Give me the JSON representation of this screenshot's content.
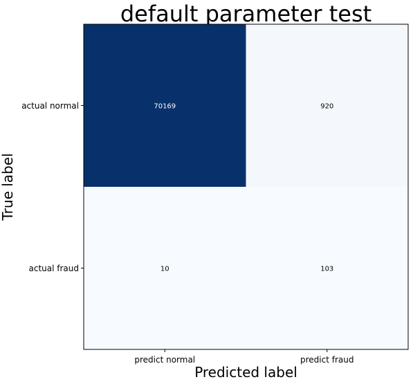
{
  "chart_data": {
    "type": "heatmap",
    "title": "default parameter test",
    "xlabel": "Predicted label",
    "ylabel": "True label",
    "x_categories": [
      "predict normal",
      "predict fraud"
    ],
    "y_categories": [
      "actual normal",
      "actual fraud"
    ],
    "values": [
      [
        70169,
        920
      ],
      [
        10,
        103
      ]
    ],
    "colormap": "Blues",
    "colors": {
      "high": "#08306b",
      "low": "#f7fbff",
      "text_on_dark": "#ffffff",
      "text_on_light": "#000000"
    },
    "colorbar": false,
    "grid": false
  }
}
